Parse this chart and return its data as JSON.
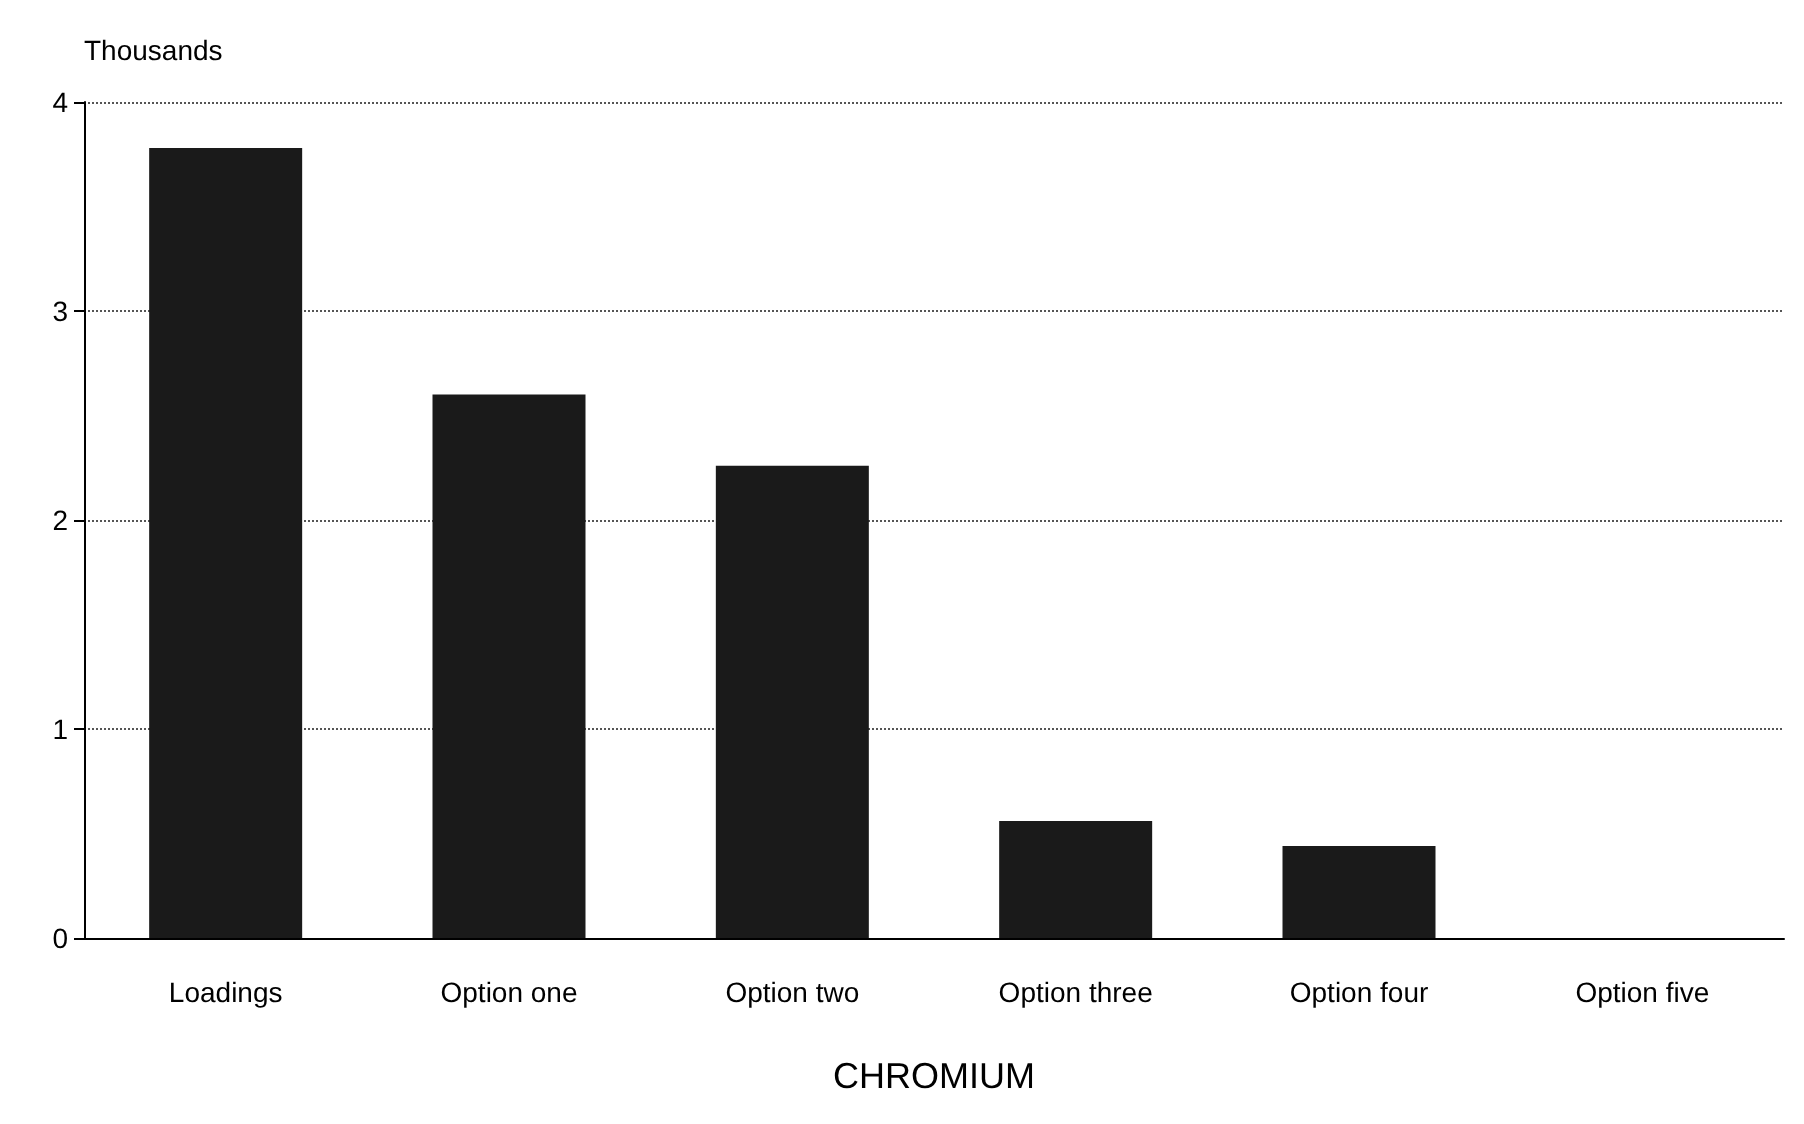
{
  "chart_data": {
    "type": "bar",
    "xlabel": "CHROMIUM",
    "ylabel": "Thousands",
    "categories": [
      "Loadings",
      "Option one",
      "Option two",
      "Option three",
      "Option four",
      "Option five"
    ],
    "values": [
      3.78,
      2.6,
      2.26,
      0.56,
      0.44,
      0
    ],
    "color": "#1a1a1a",
    "ylim": [
      0,
      4
    ],
    "yticks": [
      0,
      1,
      2,
      3,
      4
    ],
    "grid": "y"
  }
}
